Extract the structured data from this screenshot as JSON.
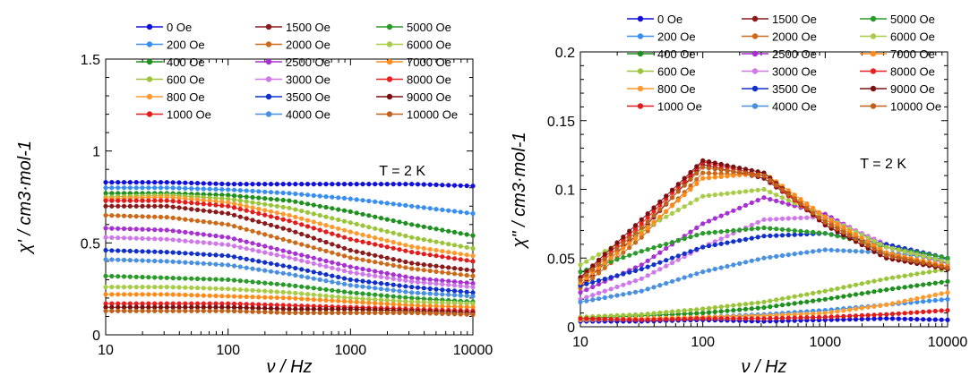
{
  "chart_data": [
    {
      "type": "scatter",
      "panel": "left",
      "xlabel": "ν / Hz",
      "ylabel": "χ' / cm3·mol-1",
      "xscale": "log",
      "xlim": [
        10,
        10000
      ],
      "ylim": [
        0,
        1.5
      ],
      "x_ticks": [
        10,
        100,
        1000,
        10000
      ],
      "x_tick_labels": [
        "10",
        "100",
        "1000",
        "10000"
      ],
      "y_ticks": [
        0,
        0.5,
        1,
        1.5
      ],
      "y_tick_labels": [
        "0",
        "0.5",
        "1",
        "1.5"
      ],
      "annotation": "T = 2 K",
      "grid": false,
      "legend_position": "top, three columns",
      "series": [
        {
          "name": "0 Oe",
          "color": "#1010d8",
          "values": [
            0.83,
            0.83,
            0.82,
            0.82,
            0.82,
            0.82,
            0.81
          ]
        },
        {
          "name": "200 Oe",
          "color": "#3a8ef0",
          "values": [
            0.8,
            0.8,
            0.79,
            0.77,
            0.74,
            0.7,
            0.66
          ]
        },
        {
          "name": "400 Oe",
          "color": "#1f8f1f",
          "values": [
            0.77,
            0.77,
            0.76,
            0.73,
            0.67,
            0.6,
            0.54
          ]
        },
        {
          "name": "600 Oe",
          "color": "#9cc43a",
          "values": [
            0.75,
            0.76,
            0.74,
            0.69,
            0.61,
            0.53,
            0.47
          ]
        },
        {
          "name": "800 Oe",
          "color": "#ff9a2e",
          "values": [
            0.74,
            0.75,
            0.72,
            0.65,
            0.56,
            0.48,
            0.43
          ]
        },
        {
          "name": "1000 Oe",
          "color": "#e01c1c",
          "values": [
            0.73,
            0.73,
            0.7,
            0.62,
            0.52,
            0.45,
            0.4
          ]
        },
        {
          "name": "1500 Oe",
          "color": "#8b1a1a",
          "values": [
            0.7,
            0.7,
            0.66,
            0.57,
            0.46,
            0.39,
            0.35
          ]
        },
        {
          "name": "2000 Oe",
          "color": "#cc6a1a",
          "values": [
            0.65,
            0.64,
            0.6,
            0.51,
            0.42,
            0.36,
            0.32
          ]
        },
        {
          "name": "2500 Oe",
          "color": "#a630d0",
          "values": [
            0.58,
            0.57,
            0.53,
            0.45,
            0.37,
            0.31,
            0.28
          ]
        },
        {
          "name": "3000 Oe",
          "color": "#cf78e8",
          "values": [
            0.53,
            0.52,
            0.49,
            0.42,
            0.34,
            0.29,
            0.26
          ]
        },
        {
          "name": "3500 Oe",
          "color": "#1030c8",
          "values": [
            0.46,
            0.45,
            0.43,
            0.37,
            0.3,
            0.26,
            0.23
          ]
        },
        {
          "name": "4000 Oe",
          "color": "#4a90e0",
          "values": [
            0.41,
            0.4,
            0.38,
            0.33,
            0.27,
            0.23,
            0.21
          ]
        },
        {
          "name": "5000 Oe",
          "color": "#2a9a2a",
          "values": [
            0.32,
            0.31,
            0.3,
            0.27,
            0.23,
            0.2,
            0.18
          ]
        },
        {
          "name": "6000 Oe",
          "color": "#a8cc48",
          "values": [
            0.26,
            0.26,
            0.25,
            0.23,
            0.2,
            0.18,
            0.17
          ]
        },
        {
          "name": "7000 Oe",
          "color": "#ff8c1a",
          "values": [
            0.22,
            0.22,
            0.21,
            0.2,
            0.18,
            0.16,
            0.15
          ]
        },
        {
          "name": "8000 Oe",
          "color": "#e82020",
          "values": [
            0.17,
            0.17,
            0.17,
            0.16,
            0.15,
            0.14,
            0.13
          ]
        },
        {
          "name": "9000 Oe",
          "color": "#7a1010",
          "values": [
            0.15,
            0.15,
            0.15,
            0.14,
            0.14,
            0.13,
            0.12
          ]
        },
        {
          "name": "10000 Oe",
          "color": "#c0601a",
          "values": [
            0.13,
            0.13,
            0.13,
            0.12,
            0.12,
            0.12,
            0.11
          ]
        }
      ],
      "x_nodes": [
        10,
        31.6,
        100,
        316,
        1000,
        3162,
        10000
      ]
    },
    {
      "type": "scatter",
      "panel": "right",
      "xlabel": "ν / Hz",
      "ylabel": "χ\" / cm3·mol-1",
      "xscale": "log",
      "xlim": [
        10,
        10000
      ],
      "ylim": [
        0,
        0.2
      ],
      "x_ticks": [
        10,
        100,
        1000,
        10000
      ],
      "x_tick_labels": [
        "10",
        "100",
        "1000",
        "10000"
      ],
      "y_ticks": [
        0,
        0.05,
        0.1,
        0.15,
        0.2
      ],
      "y_tick_labels": [
        "0",
        "0.05",
        "0.1",
        "0.15",
        "0.2"
      ],
      "annotation": "T = 2 K",
      "grid": false,
      "legend_position": "top, three columns",
      "series": [
        {
          "name": "0 Oe",
          "color": "#1010d8",
          "values": [
            0.004,
            0.004,
            0.005,
            0.004,
            0.005,
            0.006,
            0.005
          ]
        },
        {
          "name": "200 Oe",
          "color": "#3a8ef0",
          "values": [
            0.005,
            0.006,
            0.007,
            0.009,
            0.012,
            0.016,
            0.02
          ]
        },
        {
          "name": "400 Oe",
          "color": "#1f8f1f",
          "values": [
            0.006,
            0.008,
            0.01,
            0.014,
            0.02,
            0.027,
            0.033
          ]
        },
        {
          "name": "600 Oe",
          "color": "#9cc43a",
          "values": [
            0.007,
            0.009,
            0.013,
            0.018,
            0.026,
            0.035,
            0.042
          ]
        },
        {
          "name": "800 Oe",
          "color": "#ff9a2e",
          "values": [
            0.005,
            0.006,
            0.007,
            0.008,
            0.01,
            0.016,
            0.025
          ]
        },
        {
          "name": "1000 Oe",
          "color": "#e01c1c",
          "values": [
            0.006,
            0.005,
            0.006,
            0.006,
            0.007,
            0.009,
            0.012
          ]
        },
        {
          "name": "1500 Oe",
          "color": "#8b1a1a",
          "values": [
            0.03,
            0.07,
            0.118,
            0.108,
            0.076,
            0.052,
            0.042
          ]
        },
        {
          "name": "2000 Oe",
          "color": "#cc6a1a",
          "values": [
            0.028,
            0.065,
            0.112,
            0.11,
            0.078,
            0.053,
            0.043
          ]
        },
        {
          "name": "2500 Oe",
          "color": "#a630d0",
          "values": [
            0.025,
            0.045,
            0.075,
            0.094,
            0.082,
            0.058,
            0.046
          ]
        },
        {
          "name": "3000 Oe",
          "color": "#cf78e8",
          "values": [
            0.02,
            0.035,
            0.058,
            0.078,
            0.08,
            0.06,
            0.047
          ]
        },
        {
          "name": "3500 Oe",
          "color": "#1030c8",
          "values": [
            0.03,
            0.042,
            0.058,
            0.066,
            0.068,
            0.06,
            0.05
          ]
        },
        {
          "name": "4000 Oe",
          "color": "#4a90e0",
          "values": [
            0.018,
            0.026,
            0.04,
            0.05,
            0.056,
            0.054,
            0.049
          ]
        },
        {
          "name": "5000 Oe",
          "color": "#2a9a2a",
          "values": [
            0.04,
            0.055,
            0.068,
            0.072,
            0.068,
            0.058,
            0.05
          ]
        },
        {
          "name": "6000 Oe",
          "color": "#a8cc48",
          "values": [
            0.045,
            0.07,
            0.095,
            0.1,
            0.08,
            0.058,
            0.047
          ]
        },
        {
          "name": "7000 Oe",
          "color": "#ff8c1a",
          "values": [
            0.032,
            0.068,
            0.108,
            0.112,
            0.08,
            0.054,
            0.044
          ]
        },
        {
          "name": "8000 Oe",
          "color": "#e82020",
          "values": [
            0.035,
            0.075,
            0.12,
            0.11,
            0.074,
            0.05,
            0.042
          ]
        },
        {
          "name": "9000 Oe",
          "color": "#7a1010",
          "values": [
            0.036,
            0.078,
            0.121,
            0.112,
            0.074,
            0.05,
            0.042
          ]
        },
        {
          "name": "10000 Oe",
          "color": "#c0601a",
          "values": [
            0.034,
            0.072,
            0.116,
            0.11,
            0.076,
            0.052,
            0.043
          ]
        }
      ],
      "x_nodes": [
        10,
        31.6,
        100,
        316,
        1000,
        3162,
        10000
      ]
    }
  ]
}
